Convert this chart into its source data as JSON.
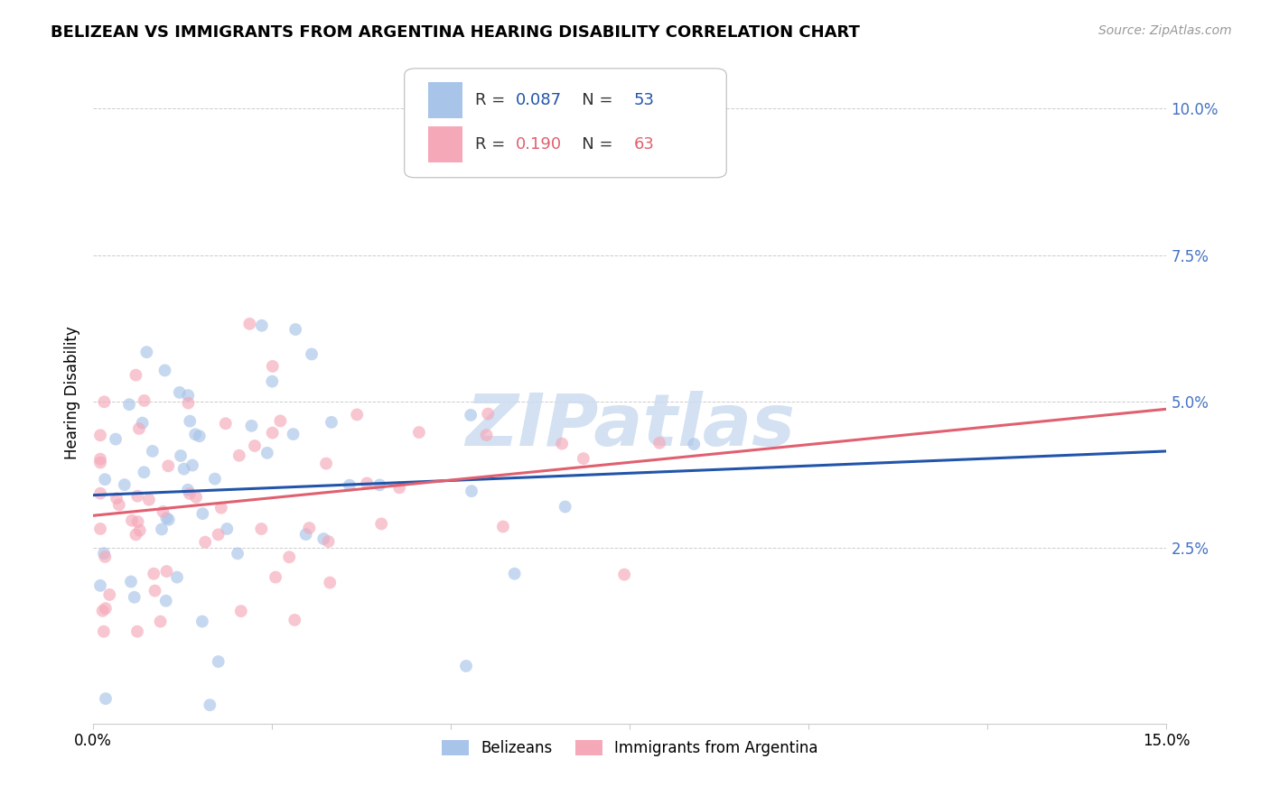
{
  "title": "BELIZEAN VS IMMIGRANTS FROM ARGENTINA HEARING DISABILITY CORRELATION CHART",
  "source": "Source: ZipAtlas.com",
  "ylabel": "Hearing Disability",
  "ytick_values": [
    0.025,
    0.05,
    0.075,
    0.1
  ],
  "xlim": [
    0.0,
    0.15
  ],
  "ylim": [
    -0.005,
    0.108
  ],
  "blue_R": 0.087,
  "blue_N": 53,
  "pink_R": 0.19,
  "pink_N": 63,
  "blue_color": "#a8c4e8",
  "pink_color": "#f5a8b8",
  "blue_line_color": "#2255aa",
  "pink_line_color": "#e06070",
  "legend_label_blue": "Belizeans",
  "legend_label_pink": "Immigrants from Argentina",
  "background_color": "#ffffff",
  "watermark_color": "#ccdcf0",
  "grid_color": "#cccccc",
  "ytick_color": "#4472c4",
  "title_fontsize": 13,
  "source_fontsize": 10,
  "tick_fontsize": 12,
  "legend_fontsize": 13,
  "scatter_size": 100,
  "scatter_alpha": 0.65
}
